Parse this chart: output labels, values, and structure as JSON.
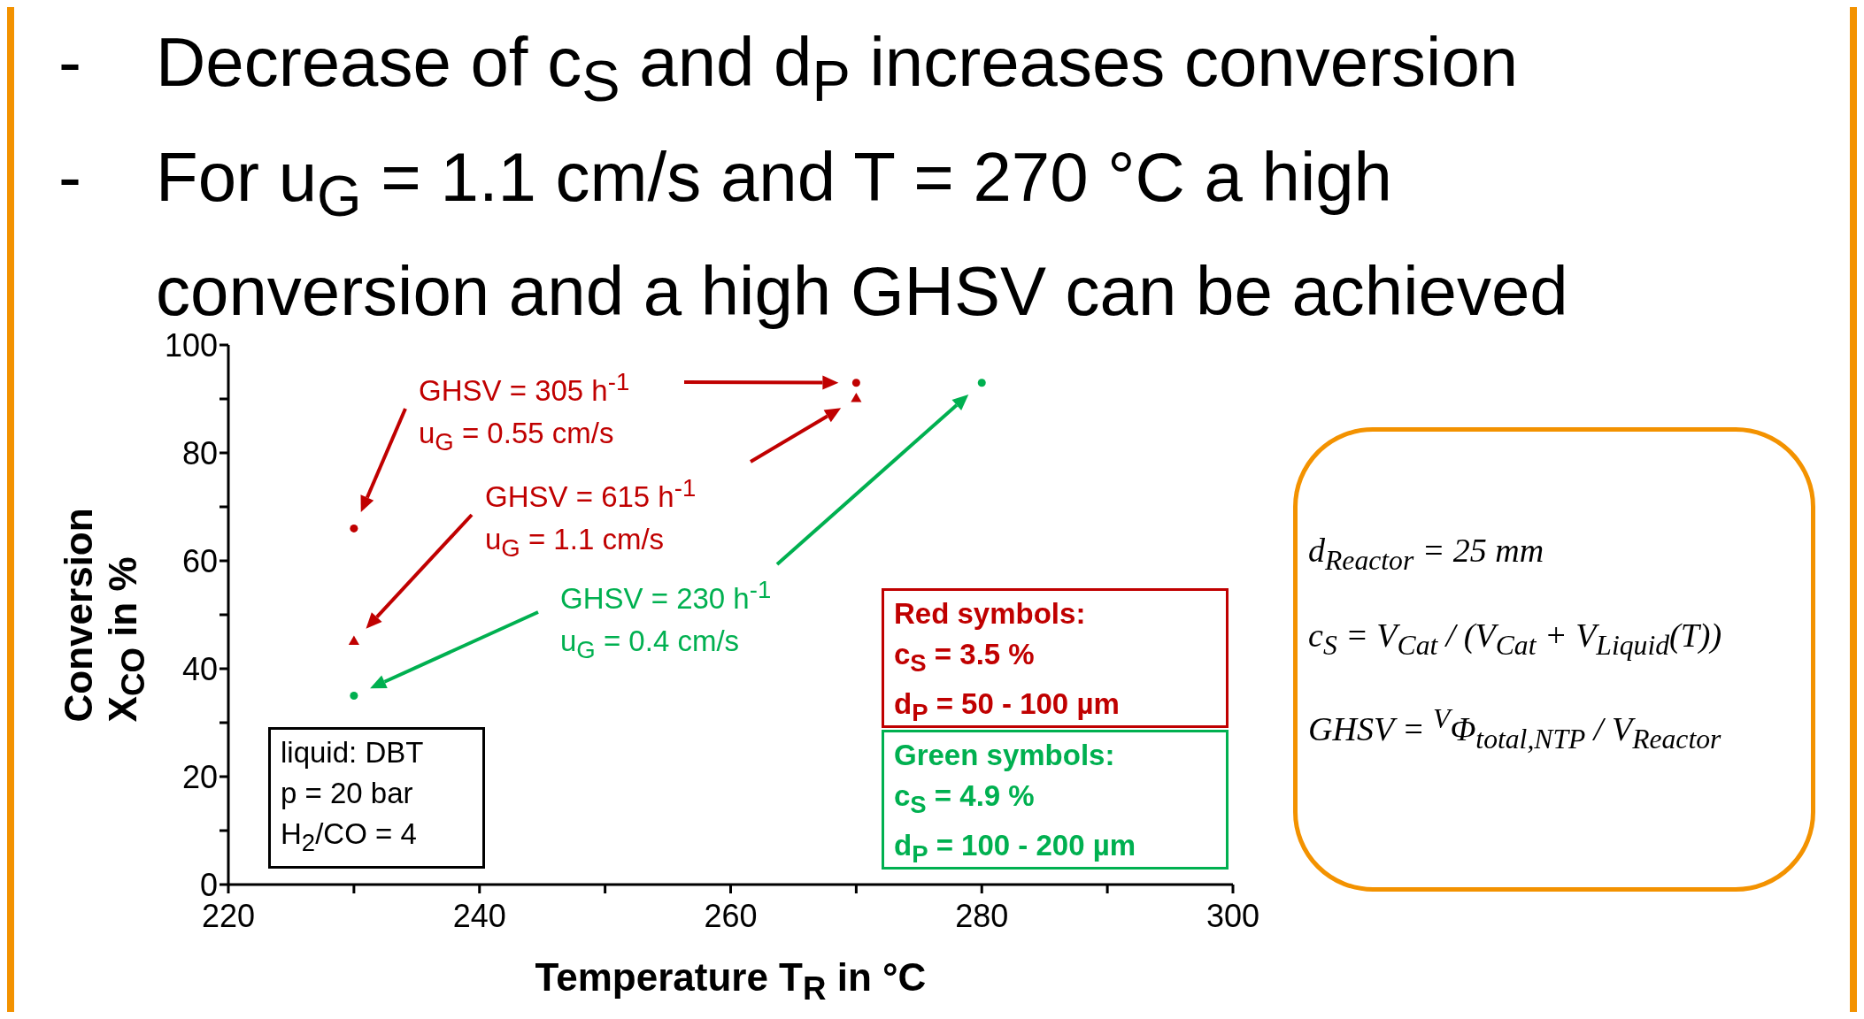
{
  "chart_data": {
    "type": "scatter",
    "xlabel": "Temperature T$_{R}$ in °C",
    "ylabel": "Conversion X$_{CO}$ in %",
    "xlim": [
      220,
      300
    ],
    "xticks": [
      220,
      {
        "value": 230,
        "label": null
      },
      240,
      {
        "value": 250,
        "label": null
      },
      260,
      {
        "value": 270,
        "label": null
      },
      280,
      {
        "value": 290,
        "label": null
      },
      300
    ],
    "ylim": [
      0,
      100
    ],
    "yticks": [
      0,
      {
        "value": 10,
        "label": null
      },
      20,
      {
        "value": 30,
        "label": null
      },
      40,
      {
        "value": 50,
        "label": null
      },
      60,
      {
        "value": 70,
        "label": null
      },
      80,
      {
        "value": 90,
        "label": null
      },
      100
    ],
    "series": [
      {
        "color": "#c00000",
        "marker": "circle",
        "x": [
          230,
          270
        ],
        "values": [
          66,
          93
        ]
      },
      {
        "color": "#c00000",
        "marker": "triangle",
        "x": [
          230,
          270
        ],
        "values": [
          45,
          90
        ]
      },
      {
        "color": "#00b050",
        "marker": "circle",
        "x": [
          230,
          280
        ],
        "values": [
          35,
          93
        ]
      }
    ],
    "annotations": [
      "- Decrease of c$_{S}$ and d$_{P}$ increases conversion",
      "- For u$_{G}$ = 1.1 cm/s and T = 270 °C a high\nconversion and a high GHSV can be achieved",
      "GHSV = 305 h$^{-1}$\nu$_{G}$ = 0.55 cm/s",
      "GHSV = 615 h$^{-1}$\nu$_{G}$ = 1.1 cm/s",
      "GHSV = 230 h$^{-1}$\nu$_{G}$ = 0.4 cm/s",
      "Red symbols:\nc$_{S}$ = 3.5 %\nd$_{P}$ = 50 - 100 µm",
      "Green symbols:\nc$_{S}$ = 4.9 %\nd$_{P}$ = 100 - 200 µm",
      "liquid: DBT\np = 20 bar\nH$_{2}$/CO = 4",
      "d$_{Reactor}$ = 25 mm",
      "c$_{S}$ = V$_{Cat}$ / (V$_{Cat}$ + V$_{Liquid}$(T))",
      "GHSV = $^{V}$Φ$_{total,NTP}$ / V$_{Reactor}$"
    ]
  }
}
